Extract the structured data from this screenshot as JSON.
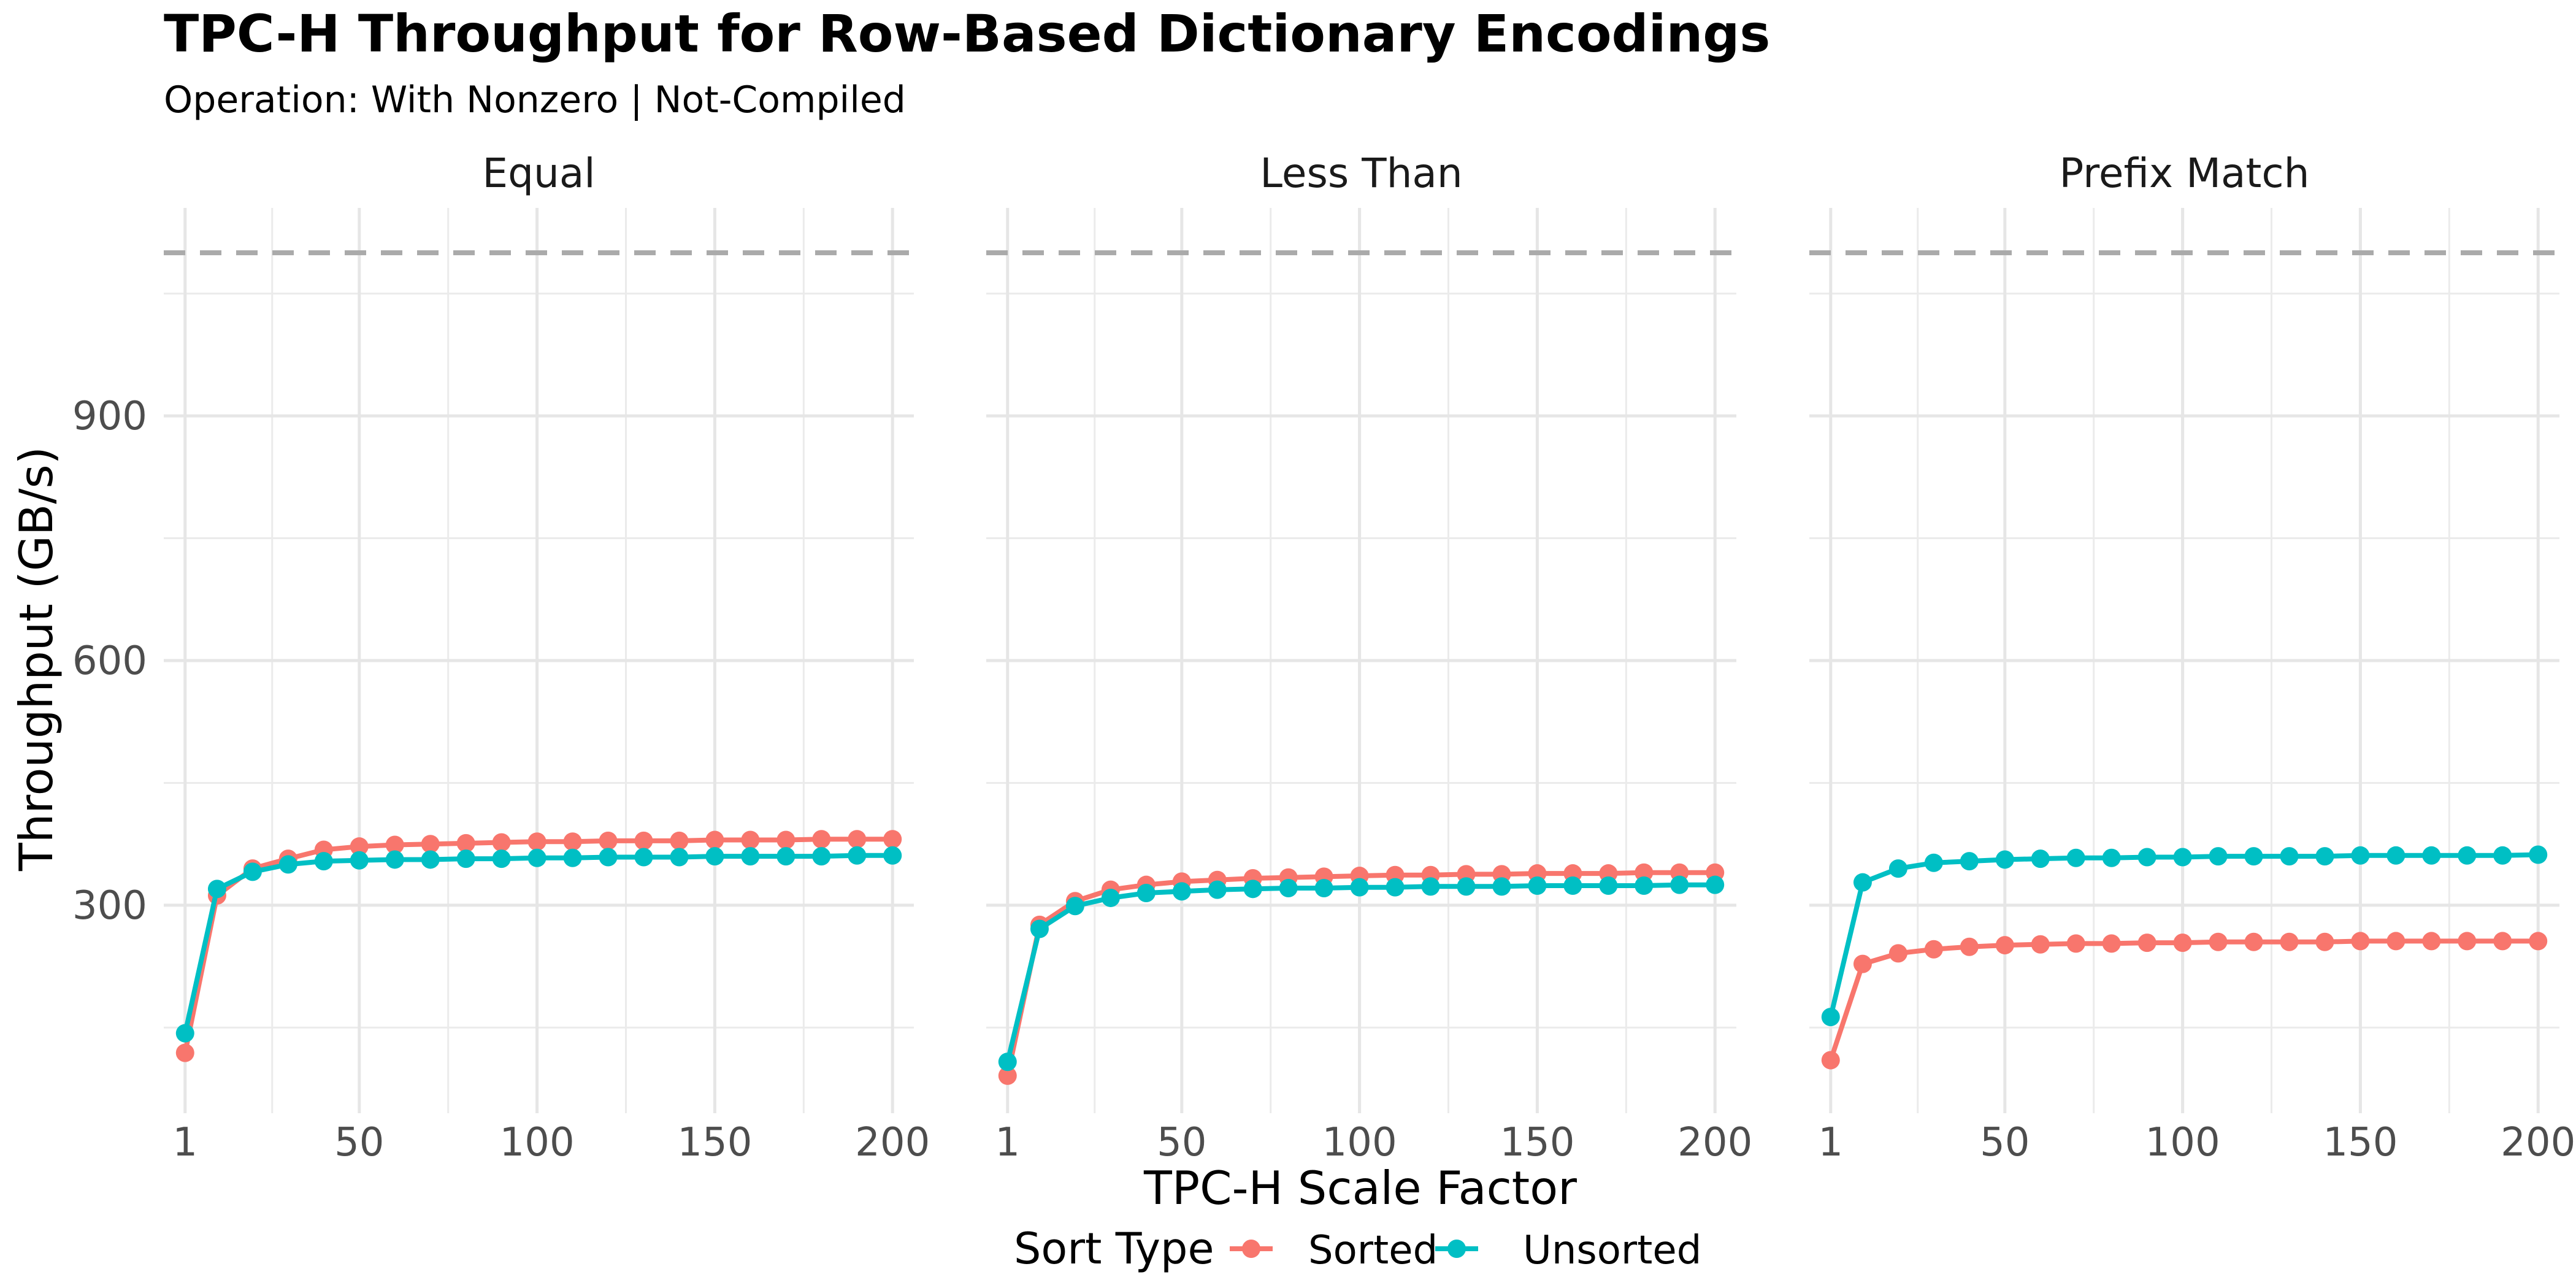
{
  "chart_data": {
    "type": "line",
    "title": "TPC-H Throughput for Row-Based Dictionary Encodings",
    "subtitle": "Operation: With Nonzero | Not-Compiled",
    "xlabel": "TPC-H Scale Factor",
    "ylabel": "Throughput (GB/s)",
    "x_ticks": [
      1,
      50,
      100,
      150,
      200
    ],
    "y_ticks": [
      300,
      600,
      900
    ],
    "xlim": [
      -5,
      206
    ],
    "ylim": [
      45,
      1155
    ],
    "reference_line": {
      "y": 1100,
      "style": "dashed",
      "color": "#AAAAAA"
    },
    "grid": true,
    "legend": {
      "title": "Sort Type",
      "position": "bottom",
      "entries": [
        {
          "name": "Sorted",
          "color": "#F8766D"
        },
        {
          "name": "Unsorted",
          "color": "#00BFC4"
        }
      ]
    },
    "x": [
      1,
      10,
      20,
      30,
      40,
      50,
      60,
      70,
      80,
      90,
      100,
      110,
      120,
      130,
      140,
      150,
      160,
      170,
      180,
      190,
      200
    ],
    "panels": [
      {
        "name": "Equal",
        "series": [
          {
            "name": "Sorted",
            "color": "#F8766D",
            "values": [
              119,
              312,
              345,
              357,
              368,
              372,
              374,
              375,
              376,
              377,
              378,
              378,
              379,
              379,
              379,
              380,
              380,
              380,
              381,
              381,
              381
            ]
          },
          {
            "name": "Unsorted",
            "color": "#00BFC4",
            "values": [
              143,
              320,
              341,
              350,
              354,
              355,
              356,
              356,
              357,
              357,
              358,
              358,
              359,
              359,
              359,
              360,
              360,
              360,
              360,
              361,
              361
            ]
          }
        ]
      },
      {
        "name": "Less Than",
        "series": [
          {
            "name": "Sorted",
            "color": "#F8766D",
            "values": [
              91,
              276,
              305,
              319,
              325,
              329,
              331,
              333,
              334,
              335,
              336,
              337,
              337,
              338,
              338,
              339,
              339,
              339,
              340,
              340,
              340
            ]
          },
          {
            "name": "Unsorted",
            "color": "#00BFC4",
            "values": [
              108,
              271,
              299,
              309,
              315,
              317,
              319,
              320,
              321,
              321,
              322,
              322,
              323,
              323,
              323,
              324,
              324,
              324,
              324,
              325,
              325
            ]
          }
        ]
      },
      {
        "name": "Prefix Match",
        "series": [
          {
            "name": "Sorted",
            "color": "#F8766D",
            "values": [
              110,
              228,
              241,
              246,
              249,
              251,
              252,
              253,
              253,
              254,
              254,
              255,
              255,
              255,
              255,
              256,
              256,
              256,
              256,
              256,
              256
            ]
          },
          {
            "name": "Unsorted",
            "color": "#00BFC4",
            "values": [
              163,
              328,
              345,
              352,
              354,
              356,
              357,
              358,
              358,
              359,
              359,
              360,
              360,
              360,
              360,
              361,
              361,
              361,
              361,
              361,
              362
            ]
          }
        ]
      }
    ]
  }
}
